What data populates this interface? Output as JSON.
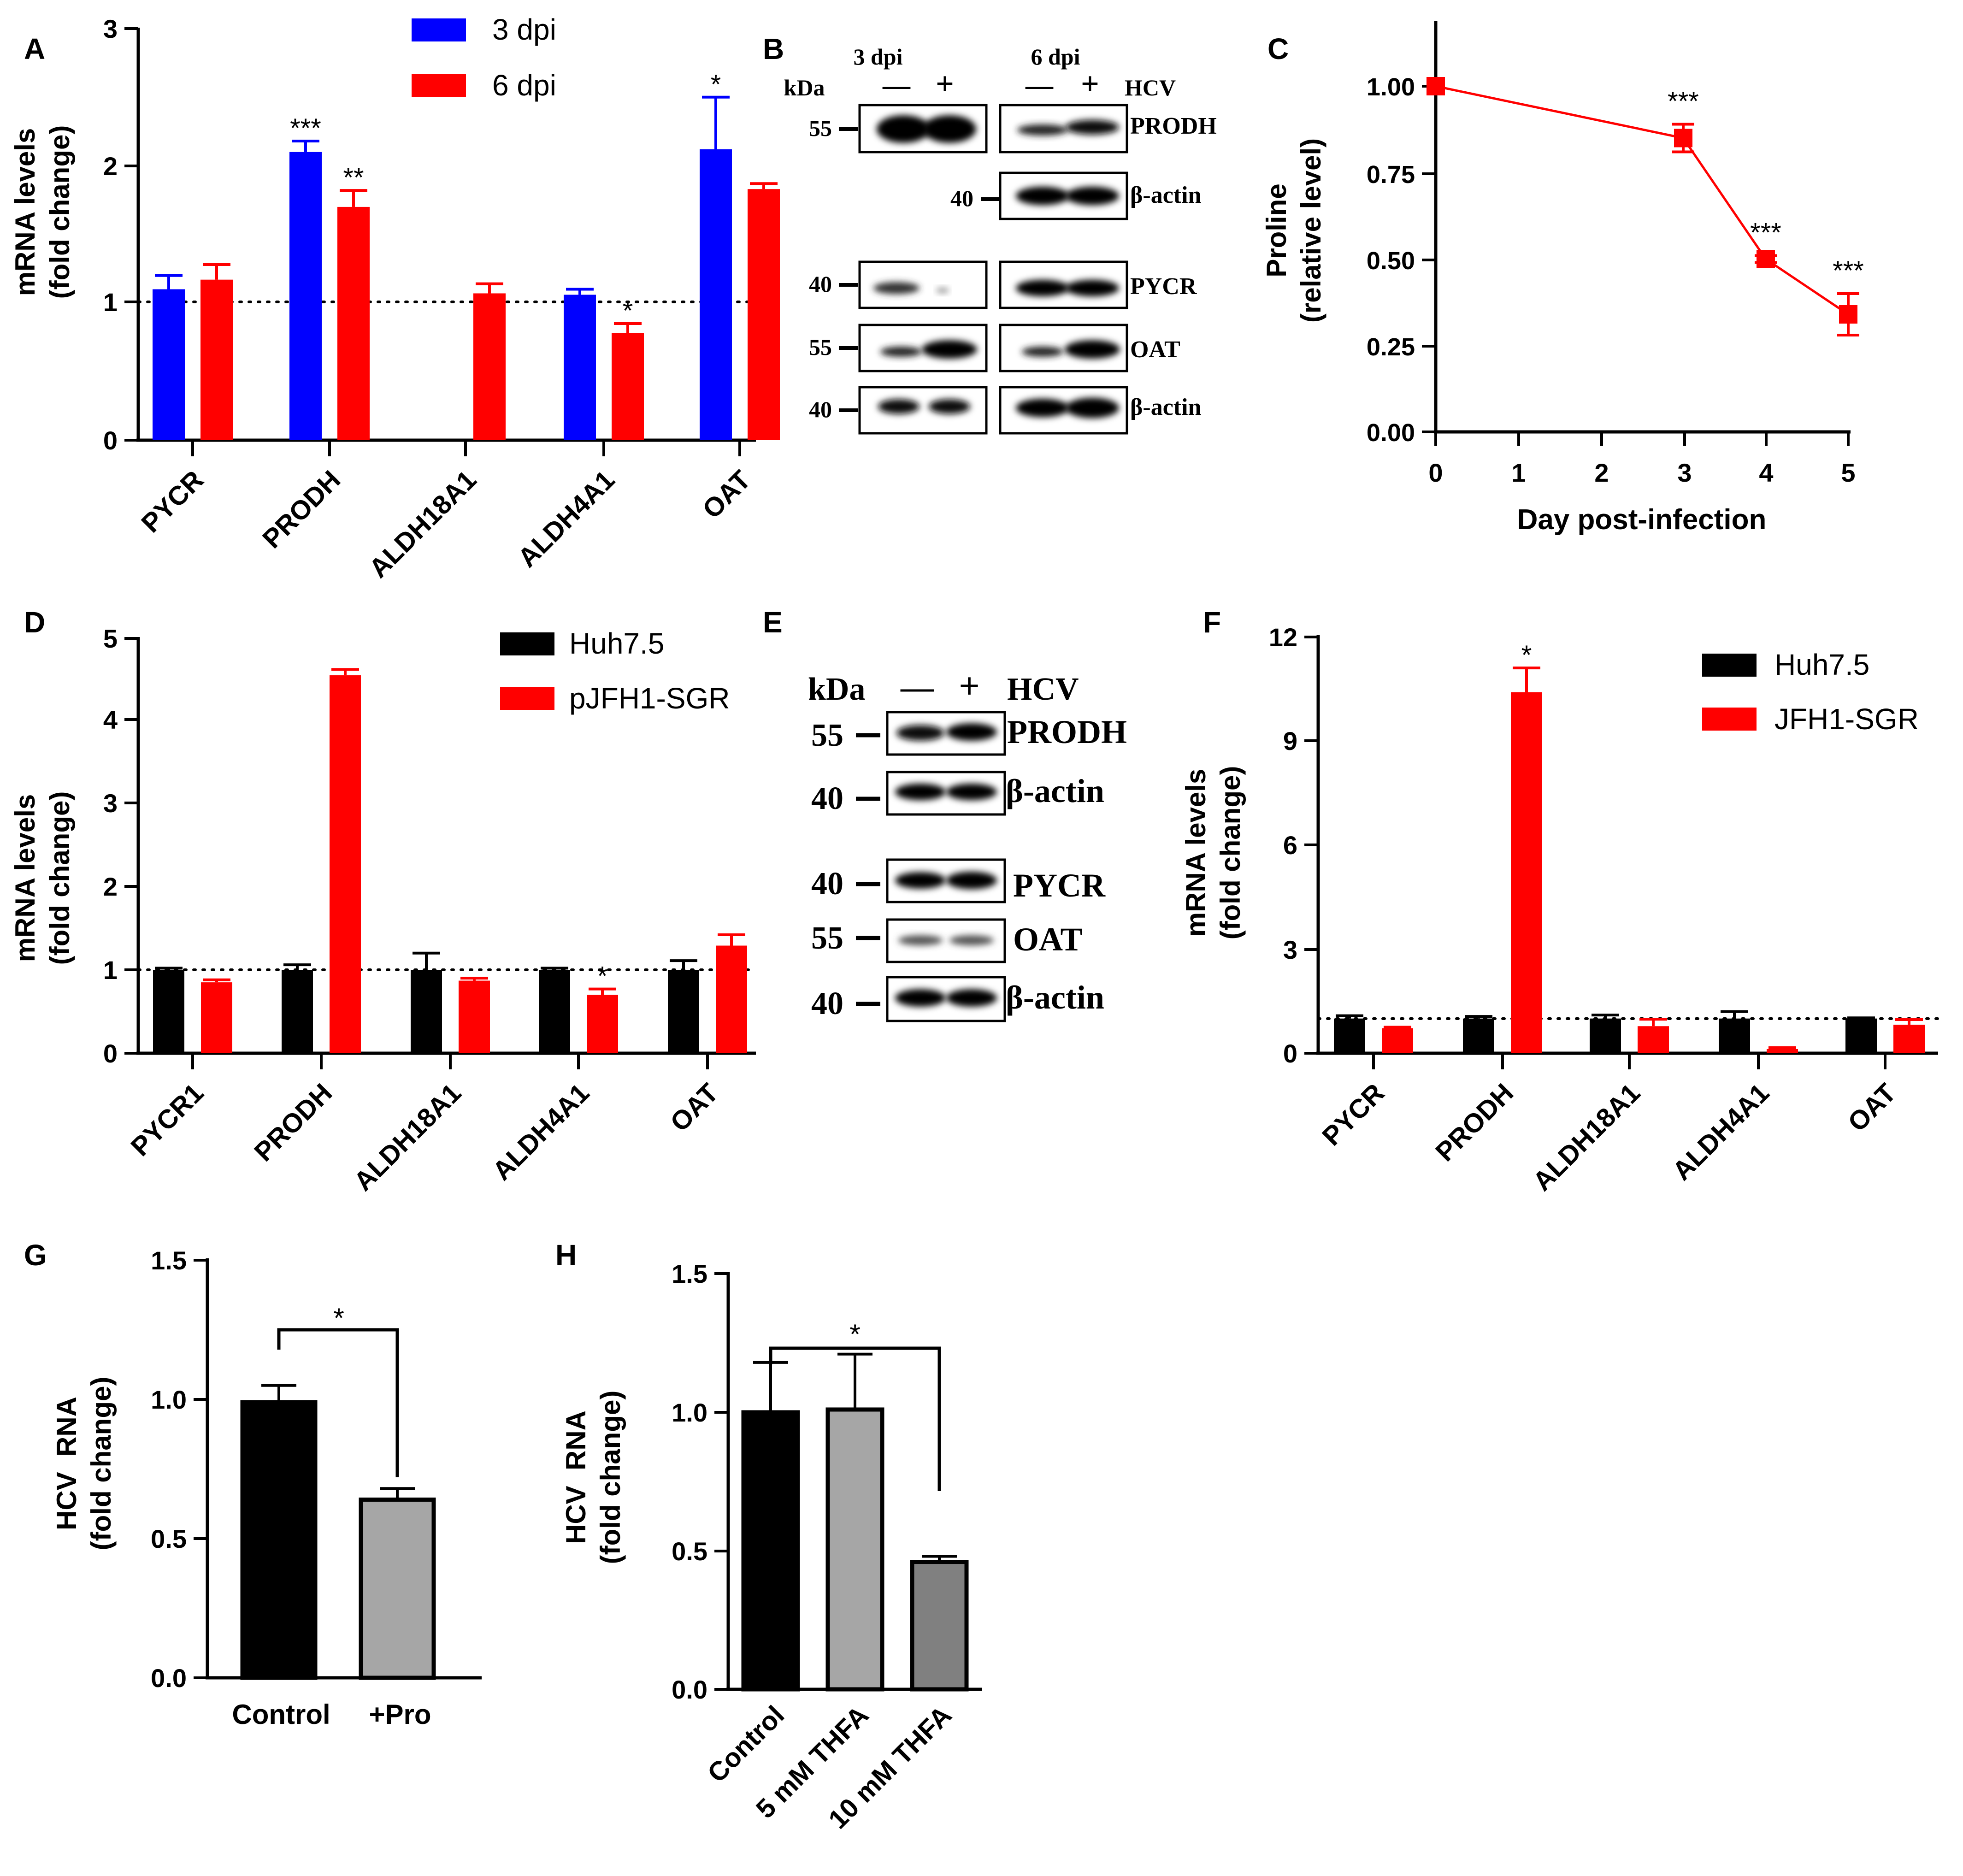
{
  "colors": {
    "blue": "#0000ff",
    "red": "#ff0000",
    "black": "#000000",
    "lightgray": "#a6a6a6",
    "darkgray": "#808080"
  },
  "chart_data": [
    {
      "panel": "A",
      "type": "bar",
      "ylabel": [
        "mRNA levels",
        "(fold change)"
      ],
      "ylim": [
        0,
        3
      ],
      "yticks": [
        "0",
        "1",
        "2",
        "3"
      ],
      "reference_line": 1,
      "categories": [
        "PYCR",
        "PRODH",
        "ALDH18A1",
        "ALDH4A1",
        "OAT"
      ],
      "legend": [
        "3 dpi",
        "6 dpi"
      ],
      "series": [
        {
          "name": "3 dpi",
          "values": [
            1.1,
            2.1,
            null,
            1.06,
            2.12
          ],
          "errors": [
            0.1,
            0.08,
            null,
            0.04,
            0.38
          ],
          "sig": [
            "",
            "***",
            "",
            "",
            "*"
          ]
        },
        {
          "name": "6 dpi",
          "values": [
            1.17,
            1.7,
            1.07,
            0.78,
            1.83
          ],
          "errors": [
            0.11,
            0.12,
            0.07,
            0.07,
            0.04
          ],
          "sig": [
            "",
            "**",
            "",
            "*",
            ""
          ]
        }
      ]
    },
    {
      "panel": "C",
      "type": "line",
      "xlabel": "Day post-infection",
      "ylabel": [
        "Proline",
        "(relative level)"
      ],
      "xlim": [
        0,
        5
      ],
      "ylim": [
        0,
        1
      ],
      "xticks": [
        "0",
        "1",
        "2",
        "3",
        "4",
        "5"
      ],
      "yticks": [
        "0.00",
        "0.25",
        "0.50",
        "0.75",
        "1.00"
      ],
      "x": [
        0,
        3,
        4,
        5
      ],
      "y": [
        1.0,
        0.85,
        0.5,
        0.34
      ],
      "errors": [
        0,
        0.04,
        0.01,
        0.06
      ],
      "sig": [
        "",
        "***",
        "***",
        "***"
      ]
    },
    {
      "panel": "D",
      "type": "bar",
      "ylabel": [
        "mRNA levels",
        "(fold change)"
      ],
      "ylim": [
        0,
        5
      ],
      "yticks": [
        "0",
        "1",
        "2",
        "3",
        "4",
        "5"
      ],
      "reference_line": 1,
      "categories": [
        "PYCR1",
        "PRODH",
        "ALDH18A1",
        "ALDH4A1",
        "OAT"
      ],
      "legend": [
        "Huh7.5",
        "pJFH1-SGR"
      ],
      "series": [
        {
          "name": "Huh7.5",
          "values": [
            1.0,
            1.0,
            1.0,
            1.0,
            1.0
          ],
          "errors": [
            0.02,
            0.06,
            0.2,
            0.02,
            0.11
          ],
          "sig": [
            "",
            "",
            "",
            "",
            ""
          ]
        },
        {
          "name": "pJFH1-SGR",
          "values": [
            0.85,
            4.53,
            0.87,
            0.7,
            1.29
          ],
          "errors": [
            0.03,
            0.07,
            0.03,
            0.07,
            0.13
          ],
          "sig": [
            "",
            "",
            "",
            "*",
            ""
          ]
        }
      ]
    },
    {
      "panel": "F",
      "type": "bar",
      "ylabel": [
        "mRNA levels",
        "(fold change)"
      ],
      "ylim": [
        0,
        12
      ],
      "yticks": [
        "0",
        "3",
        "6",
        "9",
        "12"
      ],
      "reference_line": 1,
      "categories": [
        "PYCR",
        "PRODH",
        "ALDH18A1",
        "ALDH4A1",
        "OAT"
      ],
      "legend": [
        "Huh7.5",
        "JFH1-SGR"
      ],
      "series": [
        {
          "name": "Huh7.5",
          "values": [
            1.0,
            1.0,
            1.0,
            1.0,
            1.0
          ],
          "errors": [
            0.08,
            0.06,
            0.1,
            0.2,
            0.02
          ],
          "sig": [
            "",
            "",
            "",
            "",
            ""
          ]
        },
        {
          "name": "JFH1-SGR",
          "values": [
            0.72,
            10.4,
            0.78,
            0.12,
            0.82
          ],
          "errors": [
            0.03,
            0.7,
            0.2,
            0.04,
            0.15
          ],
          "sig": [
            "",
            "*",
            "",
            "",
            ""
          ]
        }
      ]
    },
    {
      "panel": "G",
      "type": "bar",
      "ylabel": [
        "HCV  RNA",
        "(fold change)"
      ],
      "ylim": [
        0,
        1.5
      ],
      "yticks": [
        "0.0",
        "0.5",
        "1.0",
        "1.5"
      ],
      "categories": [
        "Control",
        "+Pro"
      ],
      "values": [
        0.99,
        0.64
      ],
      "errors": [
        0.06,
        0.04
      ],
      "sig": "*"
    },
    {
      "panel": "H",
      "type": "bar",
      "ylabel": [
        "HCV  RNA",
        "(fold change)"
      ],
      "ylim": [
        0,
        1.5
      ],
      "yticks": [
        "0.0",
        "0.5",
        "1.0",
        "1.5"
      ],
      "categories": [
        "Control",
        "5 mM THFA",
        "10 mM THFA"
      ],
      "values": [
        1.0,
        1.01,
        0.46
      ],
      "errors": [
        0.18,
        0.2,
        0.02
      ],
      "sig": "*"
    }
  ],
  "blots": {
    "B": {
      "kda": "kDa",
      "hcv": "HCV",
      "groups": [
        "3 dpi",
        "6 dpi"
      ],
      "minus": "—",
      "plus": "+",
      "markers": [
        "55",
        "40",
        "40",
        "55",
        "40"
      ],
      "labels": [
        "PRODH",
        "β-actin",
        "PYCR",
        "OAT",
        "β-actin"
      ]
    },
    "E": {
      "kda": "kDa",
      "hcv": "HCV",
      "minus": "—",
      "plus": "+",
      "markers": [
        "55",
        "40",
        "40",
        "55",
        "40"
      ],
      "labels": [
        "PRODH",
        "β-actin",
        "PYCR",
        "OAT",
        "β-actin"
      ]
    }
  },
  "panel_letters": [
    "A",
    "B",
    "C",
    "D",
    "E",
    "F",
    "G",
    "H"
  ]
}
